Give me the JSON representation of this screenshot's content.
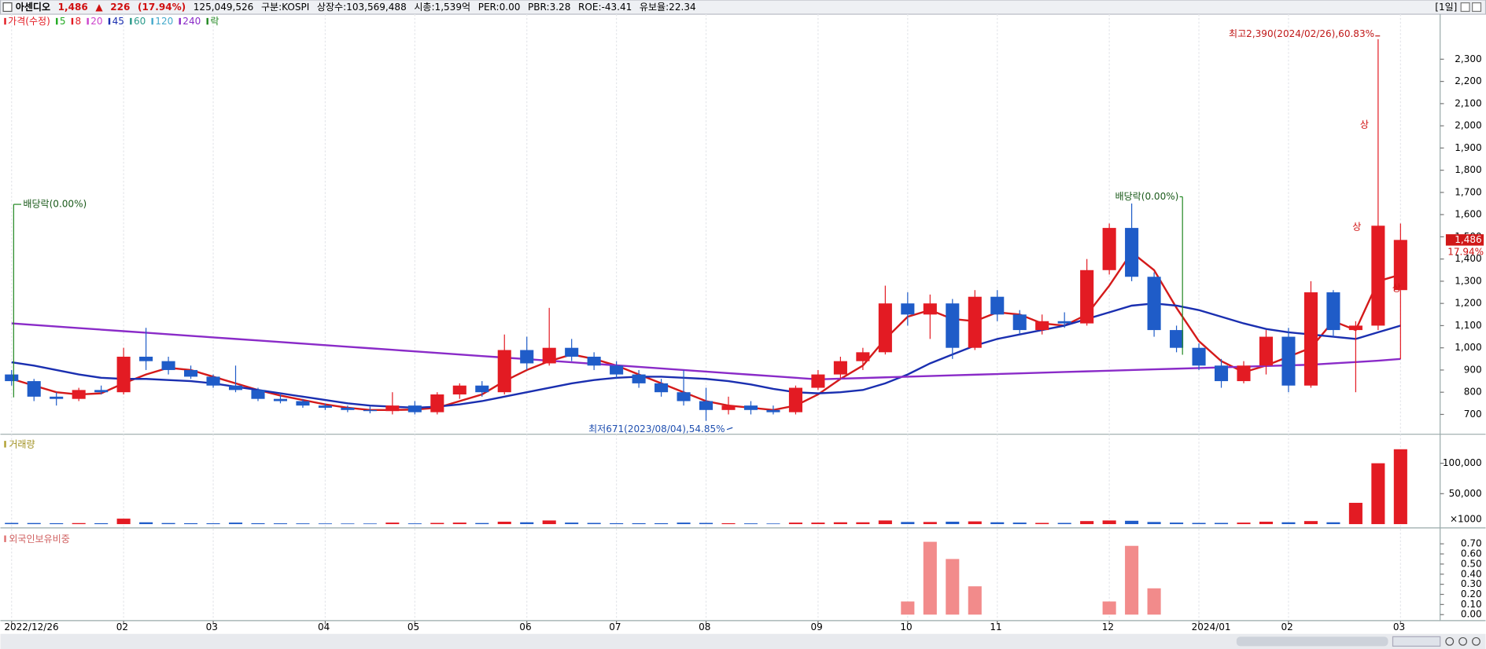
{
  "header": {
    "name": "아센디오",
    "price": "1,486",
    "arrow": "▲",
    "change": "226",
    "change_pct": "(17.94%)",
    "volume": "125,049,526",
    "fields": [
      "구분:KOSPI",
      "상장수:103,569,488",
      "시총:1,539억",
      "PER:0.00",
      "PBR:3.28",
      "ROE:-43.41",
      "유보율:22.34"
    ],
    "period": "[1일]"
  },
  "chart_data": [
    {
      "type": "candlestick",
      "legend": [
        {
          "name": "가격(수정)",
          "color": "#e31b23"
        },
        {
          "name": "5",
          "color": "#22aa22"
        },
        {
          "name": "8",
          "color": "#e31b23"
        },
        {
          "name": "20",
          "color": "#cc44cc"
        },
        {
          "name": "45",
          "color": "#1a2fb0"
        },
        {
          "name": "60",
          "color": "#2a9a8a"
        },
        {
          "name": "120",
          "color": "#44aacc"
        },
        {
          "name": "240",
          "color": "#8a2bc8"
        },
        {
          "name": "락",
          "color": "#228822"
        }
      ],
      "categories": [
        "2022/12/26",
        null,
        null,
        null,
        null,
        "02",
        null,
        null,
        null,
        "03",
        null,
        null,
        null,
        null,
        "04",
        null,
        null,
        null,
        "05",
        null,
        null,
        null,
        null,
        "06",
        null,
        null,
        null,
        "07",
        null,
        null,
        null,
        "08",
        null,
        null,
        null,
        null,
        "09",
        null,
        null,
        null,
        "10",
        null,
        null,
        null,
        "11",
        null,
        null,
        null,
        null,
        "12",
        null,
        null,
        null,
        "2024/01",
        null,
        null,
        null,
        "02",
        null,
        null,
        null,
        null,
        "03"
      ],
      "open": [
        880,
        850,
        780,
        770,
        810,
        800,
        960,
        940,
        900,
        870,
        830,
        810,
        770,
        760,
        740,
        730,
        720,
        715,
        740,
        710,
        790,
        830,
        800,
        990,
        930,
        1000,
        960,
        920,
        880,
        840,
        800,
        760,
        720,
        740,
        720,
        710,
        820,
        880,
        940,
        980,
        1200,
        1150,
        1200,
        1000,
        1230,
        1150,
        1080,
        1120,
        1110,
        1350,
        1540,
        1320,
        1080,
        1000,
        920,
        850,
        920,
        1050,
        830,
        1250,
        1080,
        1100,
        1260
      ],
      "high": [
        900,
        860,
        800,
        820,
        830,
        1000,
        1090,
        960,
        920,
        880,
        920,
        820,
        790,
        770,
        750,
        740,
        735,
        800,
        760,
        800,
        840,
        850,
        1060,
        1050,
        1180,
        1040,
        980,
        940,
        900,
        860,
        900,
        820,
        780,
        760,
        740,
        830,
        900,
        960,
        1000,
        1280,
        1250,
        1240,
        1220,
        1260,
        1260,
        1170,
        1150,
        1160,
        1400,
        1560,
        1650,
        1340,
        1100,
        1020,
        950,
        940,
        1080,
        1090,
        1300,
        1260,
        1120,
        2390,
        1560
      ],
      "low": [
        830,
        760,
        740,
        760,
        790,
        790,
        900,
        880,
        860,
        820,
        800,
        760,
        750,
        730,
        720,
        710,
        705,
        700,
        700,
        700,
        770,
        780,
        790,
        900,
        920,
        940,
        900,
        860,
        820,
        780,
        740,
        671,
        700,
        700,
        700,
        700,
        810,
        860,
        900,
        970,
        1100,
        1040,
        950,
        990,
        1120,
        1060,
        1060,
        1090,
        1100,
        1330,
        1300,
        1050,
        980,
        900,
        820,
        840,
        880,
        800,
        820,
        1050,
        800,
        1080,
        950
      ],
      "close": [
        850,
        780,
        770,
        810,
        800,
        960,
        940,
        900,
        870,
        830,
        810,
        770,
        760,
        740,
        730,
        720,
        715,
        740,
        710,
        790,
        830,
        800,
        990,
        930,
        1000,
        960,
        920,
        880,
        840,
        800,
        760,
        720,
        740,
        720,
        710,
        820,
        880,
        940,
        980,
        1200,
        1150,
        1200,
        1000,
        1230,
        1150,
        1080,
        1120,
        1110,
        1350,
        1540,
        1320,
        1080,
        1000,
        920,
        850,
        920,
        1050,
        830,
        1250,
        1080,
        1100,
        1550,
        1486
      ],
      "up_color": "#e31b23",
      "down_color": "#1f5cc8",
      "series": [
        {
          "color": "#d41a1a",
          "values": [
            860,
            830,
            800,
            790,
            795,
            840,
            880,
            910,
            900,
            870,
            840,
            810,
            785,
            765,
            745,
            730,
            720,
            720,
            722,
            730,
            760,
            790,
            850,
            900,
            940,
            970,
            950,
            920,
            880,
            840,
            800,
            760,
            740,
            730,
            720,
            740,
            790,
            860,
            920,
            1040,
            1140,
            1170,
            1130,
            1120,
            1160,
            1150,
            1110,
            1100,
            1150,
            1280,
            1430,
            1350,
            1180,
            1030,
            940,
            890,
            920,
            960,
            1000,
            1120,
            1080,
            1300,
            1330
          ]
        },
        {
          "color": "#1a2fb0",
          "values": [
            935,
            920,
            900,
            880,
            865,
            860,
            860,
            855,
            850,
            840,
            825,
            810,
            795,
            780,
            765,
            750,
            740,
            735,
            730,
            735,
            745,
            760,
            780,
            800,
            820,
            840,
            855,
            865,
            870,
            870,
            865,
            860,
            850,
            835,
            815,
            800,
            795,
            800,
            810,
            840,
            880,
            930,
            970,
            1010,
            1040,
            1060,
            1080,
            1100,
            1130,
            1160,
            1190,
            1200,
            1190,
            1170,
            1140,
            1110,
            1085,
            1070,
            1060,
            1050,
            1040,
            1070,
            1100
          ]
        },
        {
          "color": "#8a2bc8",
          "values": [
            1110,
            1103,
            1096,
            1089,
            1082,
            1075,
            1068,
            1061,
            1054,
            1047,
            1040,
            1033,
            1026,
            1019,
            1012,
            1005,
            998,
            991,
            984,
            977,
            970,
            963,
            956,
            949,
            942,
            935,
            928,
            921,
            914,
            907,
            900,
            893,
            886,
            879,
            872,
            865,
            858,
            861,
            864,
            867,
            870,
            873,
            876,
            879,
            882,
            885,
            888,
            891,
            894,
            897,
            900,
            903,
            906,
            909,
            912,
            915,
            918,
            921,
            924,
            930,
            936,
            942,
            950
          ]
        }
      ],
      "ylim": [
        615,
        2490
      ],
      "yticks": [
        700,
        800,
        900,
        {
          "value": 1000,
          "label": "1,000"
        },
        {
          "value": 1100,
          "label": "1,100"
        },
        {
          "value": 1200,
          "label": "1,200"
        },
        {
          "value": 1300,
          "label": "1,300"
        },
        {
          "value": 1400,
          "label": "1,400"
        },
        {
          "value": 1500,
          "label": "1,500"
        },
        {
          "value": 1600,
          "label": "1,600"
        },
        {
          "value": 1700,
          "label": "1,700"
        },
        {
          "value": 1800,
          "label": "1,800"
        },
        {
          "value": 1900,
          "label": "1,900"
        },
        {
          "value": 2000,
          "label": "2,000"
        },
        {
          "value": 2100,
          "label": "2,100"
        },
        {
          "value": 2200,
          "label": "2,200"
        },
        {
          "value": 2300,
          "label": "2,300"
        }
      ],
      "annotations": {
        "high": "최고2,390(2024/02/26),60.83%",
        "low": "최저671(2023/08/04),54.85%",
        "ex_dividend": [
          "배당락(0.00%)",
          "배당락(0.00%)"
        ],
        "limit_up": [
          "상",
          "상",
          "상"
        ]
      },
      "last_price": {
        "value": 1486,
        "label": "1,486"
      },
      "change_label": "17.94%"
    },
    {
      "type": "bar",
      "title": "거래량",
      "unit_label": "×1000",
      "values": [
        2000,
        1800,
        1500,
        1700,
        1500,
        9000,
        3000,
        1800,
        1500,
        1400,
        2500,
        1500,
        1300,
        1200,
        1100,
        1000,
        1000,
        2500,
        1200,
        2000,
        2500,
        1800,
        4000,
        3000,
        6000,
        2500,
        2000,
        1500,
        1500,
        1500,
        2500,
        2000,
        1500,
        1200,
        1000,
        2500,
        2500,
        3000,
        3000,
        6000,
        3500,
        3500,
        4000,
        4500,
        3000,
        2500,
        2000,
        2000,
        5000,
        6000,
        5500,
        3500,
        2500,
        2000,
        2000,
        2500,
        4000,
        3000,
        5000,
        3000,
        35000,
        100000,
        123000
      ],
      "ylim": [
        0,
        143000
      ],
      "yticks": [
        {
          "value": 50000,
          "label": "50,000"
        },
        {
          "value": 100000,
          "label": "100,000"
        }
      ]
    },
    {
      "type": "bar",
      "title": "외국인보유비중",
      "color": "#f28b8b",
      "values": [
        0,
        0,
        0,
        0,
        0,
        0,
        0,
        0,
        0,
        0,
        0,
        0,
        0,
        0,
        0,
        0,
        0,
        0,
        0,
        0,
        0,
        0,
        0,
        0,
        0,
        0,
        0,
        0,
        0,
        0,
        0,
        0,
        0,
        0,
        0,
        0,
        0,
        0,
        0,
        0,
        0.13,
        0.72,
        0.55,
        0.28,
        0,
        0,
        0,
        0,
        0,
        0.13,
        0.68,
        0.26,
        0,
        0,
        0,
        0,
        0,
        0,
        0,
        0,
        0,
        0,
        0
      ],
      "ylim": [
        -0.05,
        0.82
      ],
      "yticks": [
        {
          "value": 0,
          "label": "0.00"
        },
        {
          "value": 0.1,
          "label": "0.10"
        },
        {
          "value": 0.2,
          "label": "0.20"
        },
        {
          "value": 0.3,
          "label": "0.30"
        },
        {
          "value": 0.4,
          "label": "0.40"
        },
        {
          "value": 0.5,
          "label": "0.50"
        },
        {
          "value": 0.6,
          "label": "0.60"
        },
        {
          "value": 0.7,
          "label": "0.70"
        }
      ]
    }
  ]
}
